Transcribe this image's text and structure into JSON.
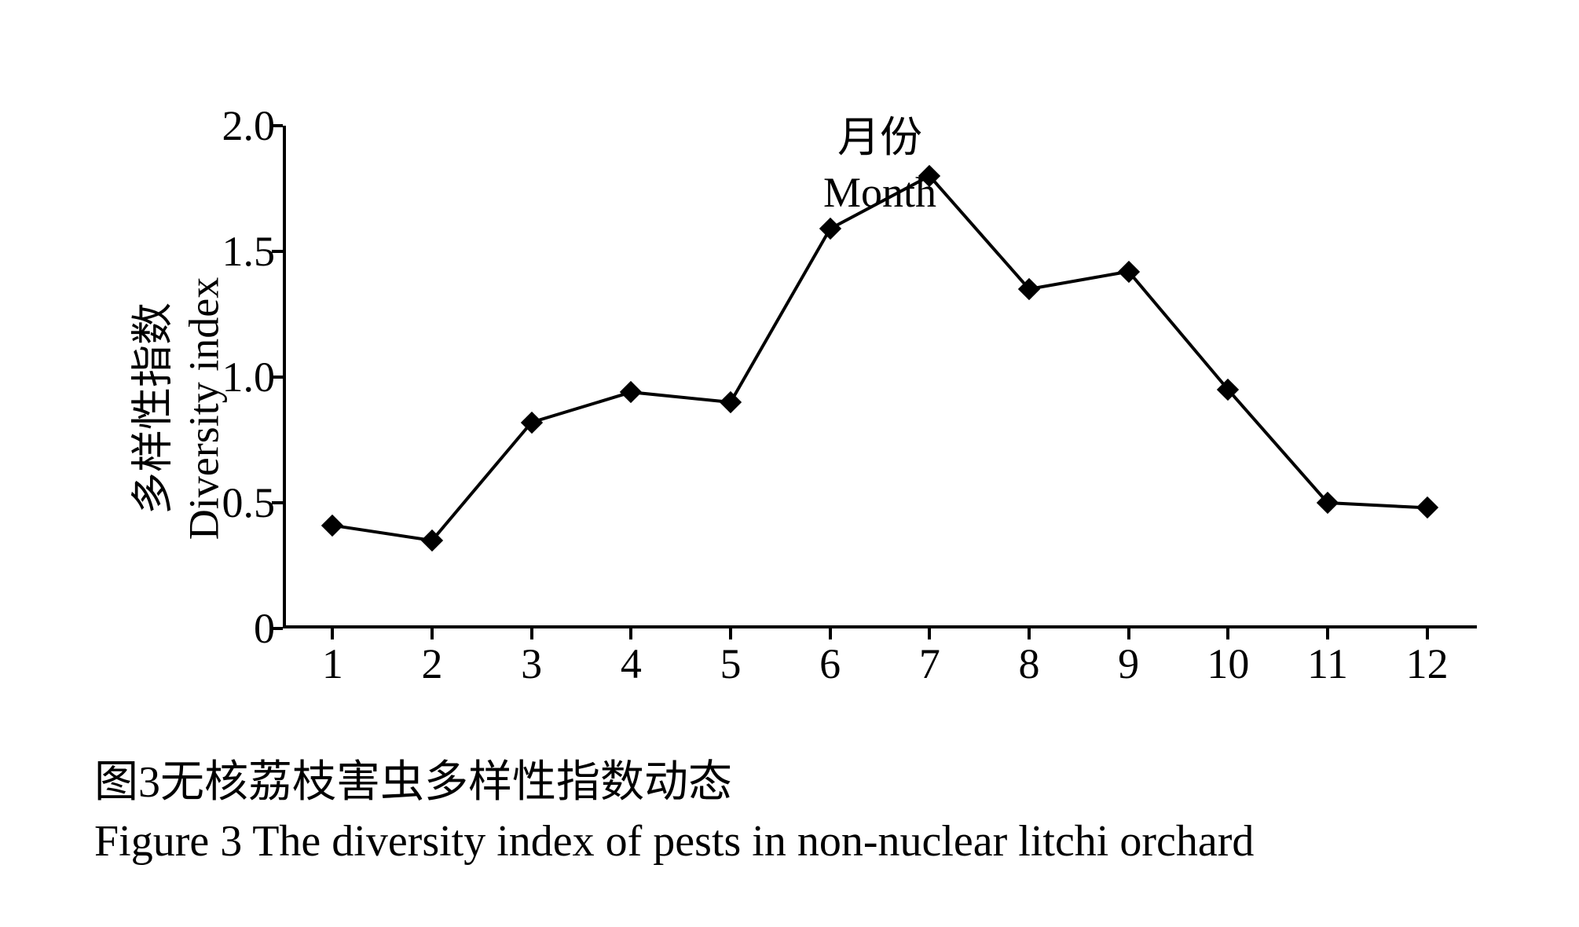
{
  "chart": {
    "type": "line",
    "x_values": [
      1,
      2,
      3,
      4,
      5,
      6,
      7,
      8,
      9,
      10,
      11,
      12
    ],
    "y_values": [
      0.41,
      0.35,
      0.82,
      0.94,
      0.9,
      1.59,
      1.8,
      1.35,
      1.42,
      0.95,
      0.5,
      0.48
    ],
    "line_color": "#000000",
    "line_width": 4,
    "marker_style": "diamond",
    "marker_size": 20,
    "marker_color": "#000000",
    "background_color": "#ffffff",
    "ylim": [
      0,
      2.0
    ],
    "xlim": [
      0.5,
      12.5
    ],
    "yticks": [
      0,
      0.5,
      1.0,
      1.5,
      2.0
    ],
    "ytick_labels": [
      "0",
      "0.5",
      "1.0",
      "1.5",
      "2.0"
    ],
    "xticks": [
      1,
      2,
      3,
      4,
      5,
      6,
      7,
      8,
      9,
      10,
      11,
      12
    ],
    "xtick_labels": [
      "1",
      "2",
      "3",
      "4",
      "5",
      "6",
      "7",
      "8",
      "9",
      "10",
      "11",
      "12"
    ],
    "axis_color": "#000000",
    "axis_width": 4,
    "tick_length": 14,
    "y_axis_label_cn": "多样性指数",
    "y_axis_label_en": "Diversity index",
    "x_axis_label_cn": "月份",
    "x_axis_label_en": "Month",
    "label_fontsize": 54,
    "tick_fontsize": 54,
    "font_family": "Times New Roman, SimSun, serif"
  },
  "caption": {
    "cn": "图3无核荔枝害虫多样性指数动态",
    "en": "Figure 3 The diversity index of pests in non-nuclear litchi orchard",
    "fontsize": 56
  }
}
